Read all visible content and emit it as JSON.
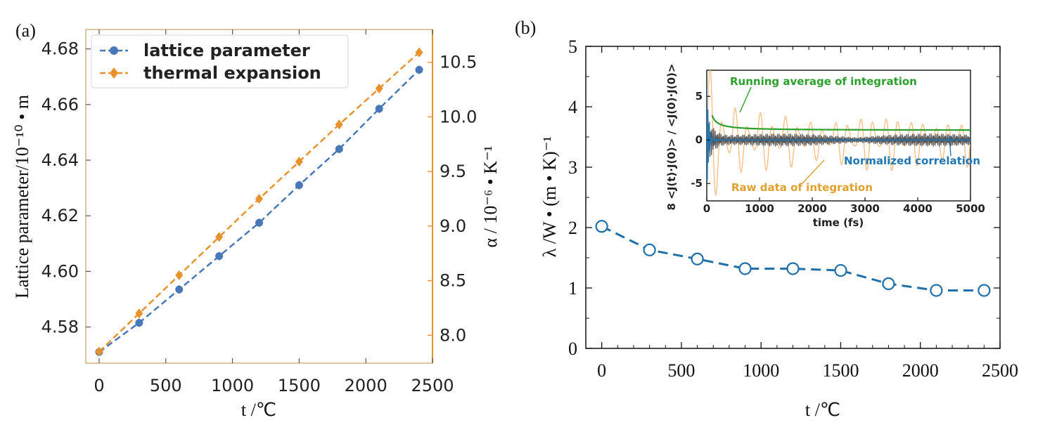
{
  "panels": {
    "a_label": "(a)",
    "b_label": "(b)"
  },
  "chart_data": [
    {
      "type": "line",
      "panel": "(a)",
      "xlabel": "t /℃",
      "ylabel": "Lattice parameter/10⁻¹⁰ • m",
      "y2label": "α / 10⁻⁶ • K⁻¹",
      "xlim": [
        -100,
        2500
      ],
      "ylim": [
        4.567,
        4.687
      ],
      "y2lim": [
        7.745,
        10.8
      ],
      "xticks": [
        "0",
        "500",
        "1000",
        "1500",
        "2000",
        "2500"
      ],
      "yticks": [
        "4.58",
        "4.60",
        "4.62",
        "4.64",
        "4.66",
        "4.68"
      ],
      "y2ticks": [
        "8.0",
        "8.5",
        "9.0",
        "9.5",
        "10.0",
        "10.5"
      ],
      "legend_position": "top-left",
      "series": [
        {
          "name": "lattice parameter",
          "axis": "left",
          "color": "#4878b8",
          "marker": "circle",
          "x": [
            0,
            300,
            600,
            900,
            1200,
            1500,
            1800,
            2100,
            2400
          ],
          "y": [
            4.571,
            4.5815,
            4.5935,
            4.6055,
            4.6175,
            4.631,
            4.644,
            4.6585,
            4.6725
          ]
        },
        {
          "name": "thermal expansion",
          "axis": "right",
          "color": "#e8922e",
          "marker": "diamond",
          "x": [
            0,
            300,
            600,
            900,
            1200,
            1500,
            1800,
            2100,
            2400
          ],
          "y": [
            7.85,
            8.2,
            8.55,
            8.9,
            9.25,
            9.59,
            9.93,
            10.26,
            10.59
          ]
        }
      ]
    },
    {
      "type": "line",
      "panel": "(b)",
      "xlabel": "t /℃",
      "ylabel": "λ /W • (m • K)⁻¹",
      "xlim": [
        -100,
        2500
      ],
      "ylim": [
        0,
        5
      ],
      "xticks": [
        "0",
        "500",
        "1000",
        "1500",
        "2000",
        "2500"
      ],
      "yticks": [
        "0",
        "1",
        "2",
        "3",
        "4",
        "5"
      ],
      "series": [
        {
          "color": "#1f6fa8",
          "marker": "open-circle",
          "line": "dashed",
          "x": [
            0,
            300,
            600,
            900,
            1200,
            1500,
            1800,
            2100,
            2400
          ],
          "y": [
            2.02,
            1.63,
            1.48,
            1.32,
            1.32,
            1.29,
            1.07,
            0.96,
            0.96
          ]
        }
      ],
      "inset": {
        "xlabel": "time (fs)",
        "ylabel": "8 <J(t)·J(0)> / <J(0)·J(0)>",
        "xlim": [
          0,
          5000
        ],
        "ylim": [
          -7,
          8
        ],
        "xticks": [
          "0",
          "1000",
          "2000",
          "3000",
          "4000",
          "5000"
        ],
        "yticks": [
          "-5",
          "0",
          "5"
        ],
        "annotations": {
          "running": "Running average of integration",
          "normalized": "Normalized correlation",
          "raw": "Raw data of integration"
        },
        "colors": {
          "running": "#2ca02c",
          "normalized": "#1f77b4",
          "raw": "#f7b06a",
          "gray": "#555555"
        }
      }
    }
  ]
}
